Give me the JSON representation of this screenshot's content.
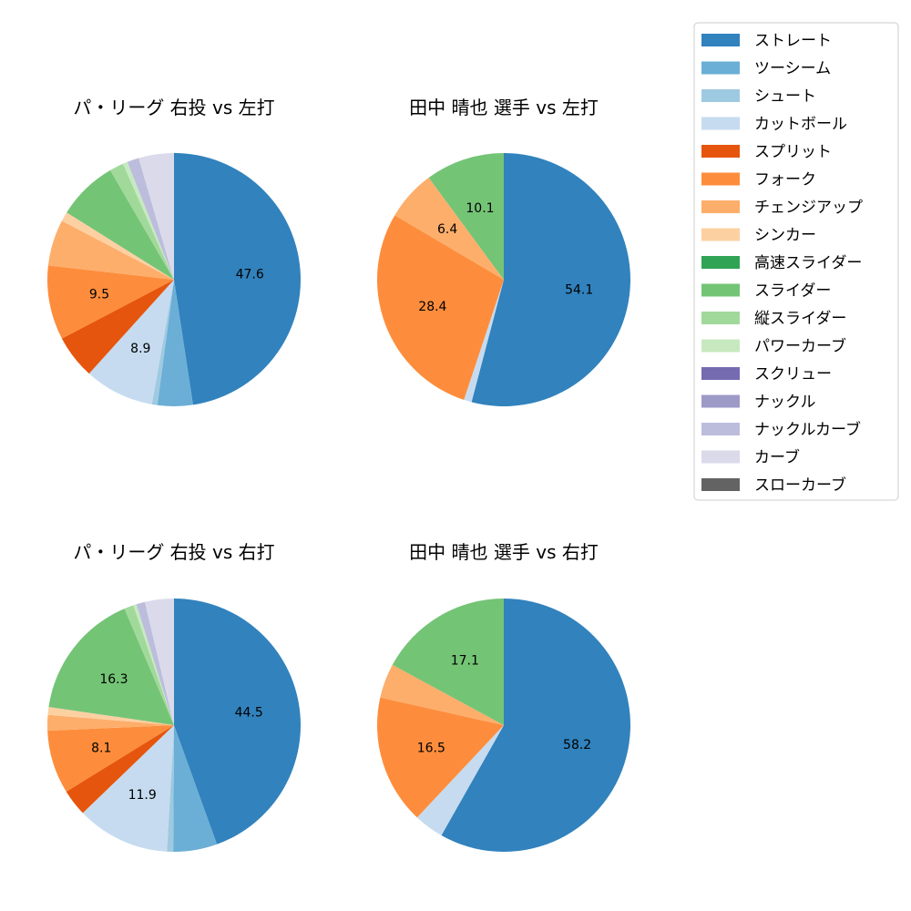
{
  "legend": {
    "categories": [
      "ストレート",
      "ツーシーム",
      "シュート",
      "カットボール",
      "スプリット",
      "フォーク",
      "チェンジアップ",
      "シンカー",
      "高速スライダー",
      "スライダー",
      "縦スライダー",
      "パワーカーブ",
      "スクリュー",
      "ナックル",
      "ナックルカーブ",
      "カーブ",
      "スローカーブ"
    ],
    "colors": [
      "#3182bd",
      "#6baed6",
      "#9ecae1",
      "#c6dbef",
      "#e6550d",
      "#fd8d3c",
      "#fdae6b",
      "#fdd0a2",
      "#31a354",
      "#74c476",
      "#a1d99b",
      "#c7e9c0",
      "#756bb1",
      "#9e9ac8",
      "#bcbddc",
      "#dadaeb",
      "#636363"
    ]
  },
  "chart_data": [
    {
      "type": "pie",
      "title": "パ・リーグ 右投 vs 左打",
      "values": [
        47.6,
        4.5,
        0.7,
        8.9,
        5.6,
        9.5,
        5.9,
        1.2,
        0.0,
        7.7,
        1.8,
        0.6,
        0.0,
        0.0,
        1.5,
        4.5,
        0.0
      ],
      "labels": [
        "47.6",
        "",
        "",
        "8.9",
        "",
        "9.5",
        "",
        "",
        "",
        "",
        "",
        "",
        "",
        "",
        "",
        "",
        ""
      ]
    },
    {
      "type": "pie",
      "title": "田中 晴也 選手 vs 左打",
      "values": [
        54.1,
        0.0,
        0.0,
        1.0,
        0.0,
        28.4,
        6.4,
        0.0,
        0.0,
        10.1,
        0.0,
        0.0,
        0.0,
        0.0,
        0.0,
        0.0,
        0.0
      ],
      "labels": [
        "54.1",
        "",
        "",
        "",
        "",
        "28.4",
        "6.4",
        "",
        "",
        "10.1",
        "",
        "",
        "",
        "",
        "",
        "",
        ""
      ]
    },
    {
      "type": "pie",
      "title": "パ・リーグ 右投 vs 右打",
      "values": [
        44.5,
        5.6,
        0.8,
        11.9,
        3.4,
        8.1,
        2.0,
        1.0,
        0.0,
        16.3,
        1.2,
        0.4,
        0.0,
        0.0,
        1.1,
        3.7,
        0.0
      ],
      "labels": [
        "44.5",
        "",
        "",
        "11.9",
        "",
        "8.1",
        "",
        "",
        "",
        "16.3",
        "",
        "",
        "",
        "",
        "",
        "",
        ""
      ]
    },
    {
      "type": "pie",
      "title": "田中 晴也 選手 vs 右打",
      "values": [
        58.2,
        0.0,
        0.0,
        3.8,
        0.0,
        16.5,
        4.4,
        0.0,
        0.0,
        17.1,
        0.0,
        0.0,
        0.0,
        0.0,
        0.0,
        0.0,
        0.0
      ],
      "labels": [
        "58.2",
        "",
        "",
        "",
        "",
        "16.5",
        "",
        "",
        "",
        "17.1",
        "",
        "",
        "",
        "",
        "",
        "",
        ""
      ]
    }
  ]
}
